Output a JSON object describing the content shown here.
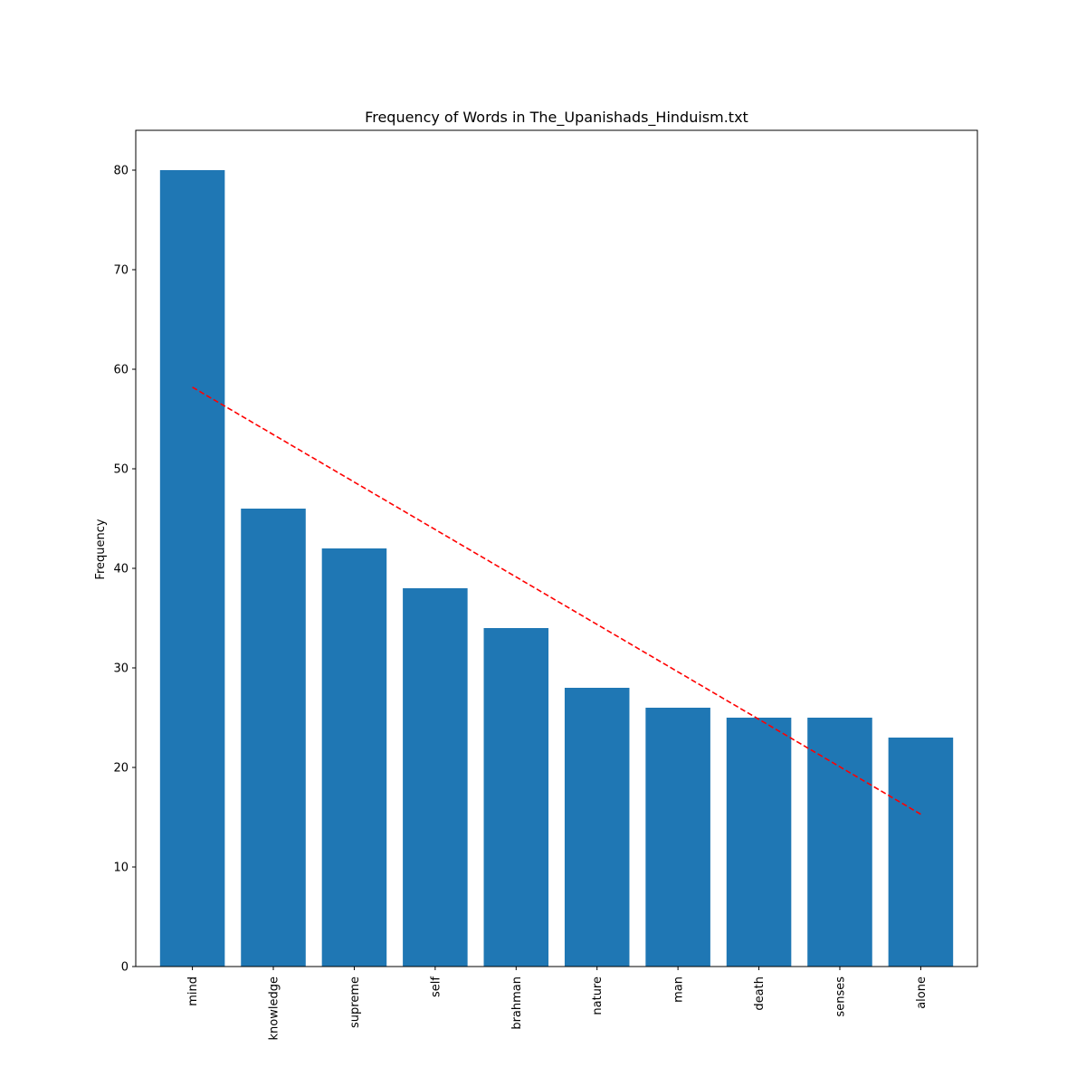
{
  "chart_data": {
    "type": "bar",
    "title": "Frequency of Words in The_Upanishads_Hinduism.txt",
    "xlabel": "",
    "ylabel": "Frequency",
    "categories": [
      "mind",
      "knowledge",
      "supreme",
      "self",
      "brahman",
      "nature",
      "man",
      "death",
      "senses",
      "alone"
    ],
    "values": [
      80,
      46,
      42,
      38,
      34,
      28,
      26,
      25,
      25,
      23
    ],
    "ylim": [
      0,
      84
    ],
    "yticks": [
      0,
      10,
      20,
      30,
      40,
      50,
      60,
      70,
      80
    ],
    "x_tick_rotation": "vertical",
    "bar_color": "#1f77b4",
    "grid": false,
    "trend_line": {
      "style": "dashed",
      "color": "#ff0000",
      "start": {
        "category": "mind",
        "value": 58.2
      },
      "end": {
        "category": "alone",
        "value": 15.3
      }
    }
  }
}
